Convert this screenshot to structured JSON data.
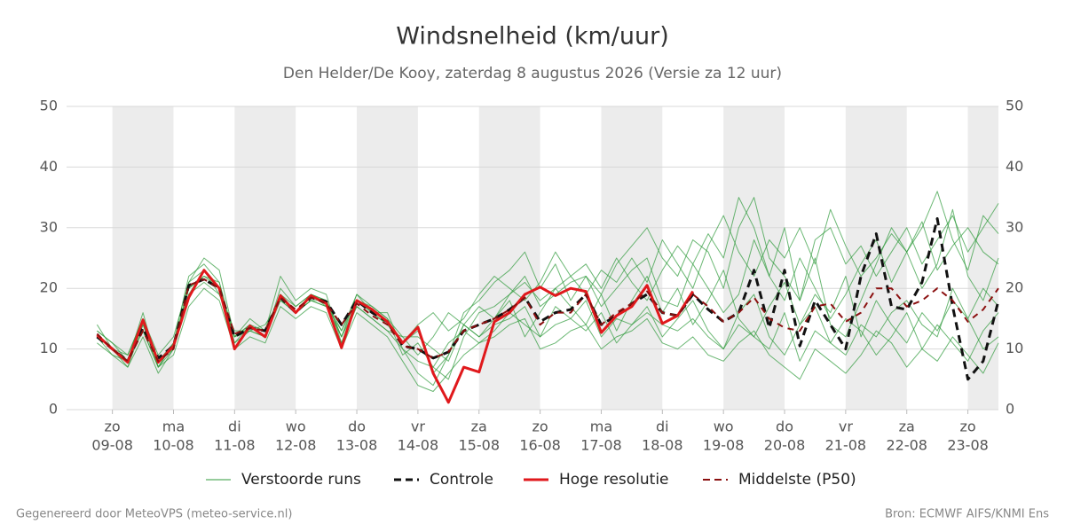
{
  "chart_data": {
    "type": "line",
    "title": "Windsnelheid (km/uur)",
    "subtitle": "Den Helder/De Kooy, zaterdag  8 augustus 2026 (Versie za 12 uur)",
    "footer_left": "Gegenereerd door MeteoVPS (meteo-service.nl)",
    "footer_right": "Bron: ECMWF AIFS/KNMI Ens",
    "xlim": [
      -18,
      348
    ],
    "xticks": [
      {
        "value": 0,
        "label": "zo",
        "date": "09-08"
      },
      {
        "value": 24,
        "label": "ma",
        "date": "10-08"
      },
      {
        "value": 48,
        "label": "di",
        "date": "11-08"
      },
      {
        "value": 72,
        "label": "wo",
        "date": "12-08"
      },
      {
        "value": 96,
        "label": "do",
        "date": "13-08"
      },
      {
        "value": 120,
        "label": "vr",
        "date": "14-08"
      },
      {
        "value": 144,
        "label": "za",
        "date": "15-08"
      },
      {
        "value": 168,
        "label": "zo",
        "date": "16-08"
      },
      {
        "value": 192,
        "label": "ma",
        "date": "17-08"
      },
      {
        "value": 216,
        "label": "di",
        "date": "18-08"
      },
      {
        "value": 240,
        "label": "wo",
        "date": "19-08"
      },
      {
        "value": 264,
        "label": "do",
        "date": "20-08"
      },
      {
        "value": 288,
        "label": "vr",
        "date": "21-08"
      },
      {
        "value": 312,
        "label": "za",
        "date": "22-08"
      },
      {
        "value": 336,
        "label": "zo",
        "date": "23-08"
      }
    ],
    "ylim": [
      0,
      50
    ],
    "yticks": [
      0,
      10,
      20,
      30,
      40,
      50
    ],
    "grid": true,
    "shade_alternate_days": true,
    "x": [
      -6,
      0,
      6,
      12,
      18,
      24,
      30,
      36,
      42,
      48,
      54,
      60,
      66,
      72,
      78,
      84,
      90,
      96,
      102,
      108,
      114,
      120,
      126,
      132,
      138,
      144,
      150,
      156,
      162,
      168,
      174,
      180,
      186,
      192,
      198,
      204,
      210,
      216,
      222,
      228,
      234,
      240,
      246,
      252,
      258,
      264,
      270,
      276,
      282,
      288,
      294,
      300,
      306,
      312,
      318,
      324,
      330,
      336,
      342,
      348
    ],
    "ensemble": {
      "name": "Verstoorde runs",
      "color": "#2e9a3a",
      "runs": [
        [
          13,
          11,
          8,
          16,
          7,
          11,
          22,
          24,
          21,
          11,
          14,
          12,
          20,
          17,
          19,
          18,
          12,
          19,
          17,
          15,
          9,
          11,
          7,
          5,
          12,
          16,
          17,
          19,
          22,
          17,
          19,
          21,
          22,
          17,
          20,
          23,
          25,
          18,
          17,
          24,
          20,
          16,
          19,
          28,
          22,
          30,
          18,
          25,
          14,
          12,
          18,
          24,
          30,
          26,
          20,
          24,
          33,
          22,
          18,
          25
        ],
        [
          12,
          9,
          7,
          12,
          6,
          10,
          19,
          23,
          19,
          13,
          13,
          14,
          18,
          16,
          18,
          17,
          11,
          17,
          15,
          13,
          12,
          12,
          10,
          8,
          14,
          12,
          14,
          15,
          17,
          12,
          14,
          15,
          18,
          12,
          15,
          14,
          16,
          14,
          13,
          15,
          12,
          10,
          14,
          12,
          10,
          16,
          8,
          13,
          11,
          9,
          14,
          12,
          16,
          18,
          14,
          12,
          20,
          15,
          10,
          12
        ],
        [
          14,
          10,
          9,
          15,
          9,
          12,
          21,
          25,
          23,
          12,
          15,
          13,
          22,
          18,
          20,
          19,
          11,
          18,
          16,
          16,
          10,
          6,
          4,
          9,
          16,
          18,
          21,
          23,
          26,
          20,
          24,
          18,
          22,
          19,
          24,
          27,
          30,
          25,
          22,
          28,
          26,
          20,
          30,
          35,
          25,
          22,
          18,
          28,
          30,
          24,
          27,
          22,
          26,
          30,
          24,
          28,
          32,
          26,
          30,
          34
        ],
        [
          11,
          9,
          8,
          13,
          7,
          9,
          17,
          20,
          18,
          10,
          12,
          11,
          17,
          15,
          17,
          16,
          10,
          16,
          14,
          12,
          8,
          4,
          3,
          6,
          9,
          11,
          12,
          14,
          15,
          10,
          11,
          13,
          14,
          10,
          12,
          13,
          15,
          11,
          10,
          12,
          9,
          8,
          11,
          13,
          9,
          7,
          5,
          10,
          8,
          6,
          9,
          13,
          11,
          7,
          10,
          8,
          12,
          9,
          6,
          11
        ],
        [
          12,
          10,
          8,
          14,
          8,
          11,
          20,
          22,
          20,
          12,
          14,
          13,
          19,
          17,
          19,
          18,
          13,
          18,
          16,
          14,
          11,
          14,
          16,
          13,
          15,
          19,
          22,
          20,
          18,
          21,
          26,
          22,
          19,
          23,
          21,
          25,
          21,
          28,
          24,
          20,
          27,
          32,
          26,
          22,
          28,
          25,
          30,
          24,
          33,
          27,
          22,
          25,
          29,
          26,
          31,
          23,
          27,
          30,
          26,
          24
        ],
        [
          13,
          11,
          9,
          15,
          8,
          10,
          21,
          23,
          20,
          11,
          13,
          12,
          19,
          16,
          18,
          18,
          12,
          18,
          17,
          15,
          12,
          9,
          12,
          16,
          14,
          12,
          15,
          18,
          12,
          16,
          20,
          17,
          14,
          19,
          13,
          18,
          22,
          16,
          20,
          14,
          18,
          23,
          15,
          12,
          17,
          21,
          14,
          19,
          16,
          22,
          12,
          18,
          14,
          11,
          16,
          13,
          18,
          15,
          20,
          17
        ],
        [
          12,
          10,
          7,
          14,
          7,
          10,
          20,
          22,
          21,
          12,
          14,
          12,
          19,
          16,
          19,
          17,
          13,
          19,
          16,
          14,
          11,
          13,
          6,
          9,
          14,
          17,
          15,
          19,
          21,
          18,
          20,
          22,
          24,
          20,
          25,
          21,
          18,
          23,
          27,
          24,
          29,
          25,
          35,
          30,
          22,
          18,
          25,
          20,
          15,
          19,
          24,
          28,
          21,
          26,
          30,
          36,
          28,
          23,
          32,
          29
        ],
        [
          12,
          10,
          8,
          13,
          7,
          11,
          19,
          21,
          19,
          12,
          13,
          12,
          18,
          16,
          18,
          17,
          12,
          17,
          15,
          13,
          10,
          8,
          7,
          11,
          13,
          11,
          13,
          16,
          14,
          12,
          17,
          15,
          13,
          16,
          11,
          14,
          17,
          12,
          15,
          18,
          13,
          10,
          16,
          19,
          12,
          9,
          14,
          17,
          11,
          15,
          13,
          9,
          12,
          16,
          10,
          14,
          11,
          8,
          13,
          16
        ]
      ]
    },
    "series": [
      {
        "name": "Controle",
        "color": "#111111",
        "dash": true,
        "values": [
          12,
          10,
          8,
          13.5,
          8.5,
          10.5,
          20.5,
          21.5,
          20,
          12,
          13.5,
          13,
          18.5,
          16,
          18.5,
          17.8,
          14,
          18,
          16,
          14.5,
          10.5,
          10,
          8.5,
          9.5,
          13,
          14,
          15,
          16.5,
          18.5,
          14.5,
          16,
          16.5,
          19,
          14,
          15.5,
          17.5,
          19,
          16,
          15.5,
          19,
          16.5,
          14.5,
          16,
          23,
          13.5,
          23,
          10.5,
          18,
          14,
          10,
          22,
          29,
          17,
          16.5,
          21,
          31.5,
          17,
          5,
          8,
          18
        ]
      },
      {
        "name": "Hoge resolutie",
        "color": "#e0191c",
        "dash": false,
        "values": [
          12.3,
          10,
          7.8,
          14.8,
          7.8,
          10.5,
          18.5,
          23,
          20,
          10,
          13.8,
          12,
          18.8,
          16,
          18.8,
          17.5,
          10.2,
          18,
          16.5,
          14.5,
          11,
          13.6,
          6,
          1.2,
          7,
          6.2,
          14.5,
          16,
          19,
          20.2,
          18.8,
          20,
          19.5,
          12.7,
          15.5,
          17,
          20.5,
          14.2,
          15.5,
          19.5,
          null,
          null,
          null,
          null,
          null,
          null,
          null,
          null,
          null,
          null,
          null,
          null,
          null,
          null,
          null,
          null,
          null,
          null,
          null,
          null
        ]
      },
      {
        "name": "Middelste (P50)",
        "color": "#8b1010",
        "dash": true,
        "values": [
          12.5,
          10,
          8,
          13,
          8,
          10,
          20.5,
          21.5,
          20,
          12.5,
          13.5,
          13,
          18.5,
          16.5,
          18.5,
          17.5,
          14,
          17.5,
          15.5,
          14,
          10.5,
          10,
          8.5,
          9.5,
          13,
          14,
          15,
          16.5,
          18.5,
          14,
          16,
          16,
          19,
          14,
          16,
          17.5,
          19.5,
          16,
          15.5,
          19,
          17,
          14.5,
          16,
          18.5,
          15,
          13.5,
          13,
          17,
          17.5,
          14.5,
          16,
          20,
          20,
          17,
          18,
          20,
          18,
          14.5,
          16.5,
          20
        ]
      }
    ]
  }
}
